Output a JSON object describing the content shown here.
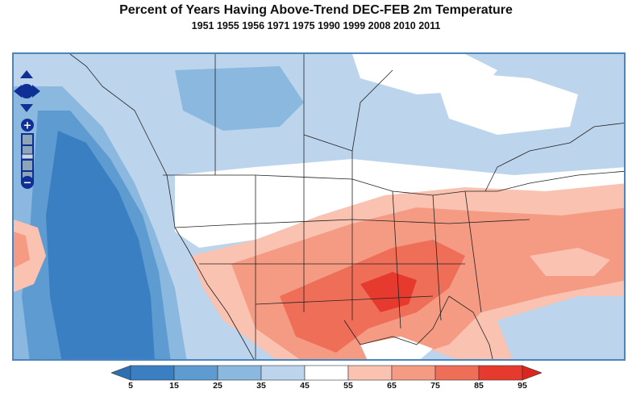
{
  "header": {
    "title": "Percent of Years Having Above-Trend DEC-FEB 2m Temperature",
    "years": "1951 1955 1956 1971 1975 1990 1999 2008 2010 2011"
  },
  "map": {
    "region": "North America",
    "variable": "DEC-FEB 2m Temperature"
  },
  "nav_controls": {
    "pan_up": "pan-up",
    "pan_down": "pan-down",
    "pan_left": "pan-left",
    "pan_right": "pan-right",
    "zoom_in_label": "+",
    "zoom_out_label": "−"
  },
  "legend": {
    "ticks": [
      "5",
      "15",
      "25",
      "35",
      "45",
      "55",
      "65",
      "75",
      "85",
      "95"
    ],
    "colors": [
      "#3a7fc1",
      "#5d9bd0",
      "#8ab8de",
      "#bcd5ec",
      "#ffffff",
      "#f9c2b1",
      "#f59b83",
      "#ef6e58",
      "#e63a2e"
    ],
    "low_arrow_color": "#2e6fb3",
    "high_arrow_color": "#d9261f"
  }
}
